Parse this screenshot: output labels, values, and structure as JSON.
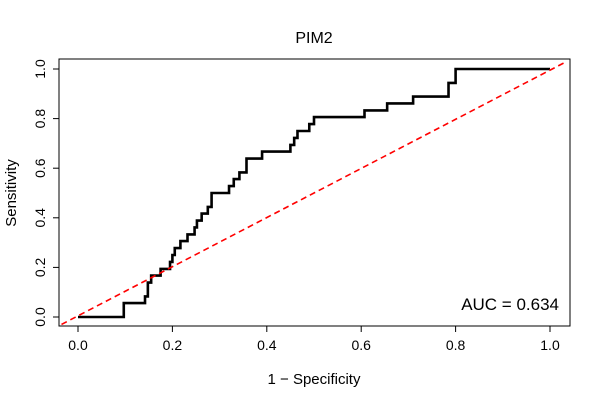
{
  "chart_data": {
    "type": "line",
    "title": "PIM2",
    "xlabel": "1 − Specificity",
    "ylabel": "Sensitivity",
    "xlim": [
      0,
      1
    ],
    "ylim": [
      0,
      1
    ],
    "xticks": [
      "0.0",
      "0.2",
      "0.4",
      "0.6",
      "0.8",
      "1.0"
    ],
    "yticks": [
      "0.0",
      "0.2",
      "0.4",
      "0.6",
      "0.8",
      "1.0"
    ],
    "annotation": "AUC = 0.634",
    "legend": "none",
    "grid": false,
    "series": [
      {
        "style": "solid",
        "color": "#000000",
        "points": [
          [
            0.0,
            0.0
          ],
          [
            0.097,
            0.0
          ],
          [
            0.097,
            0.056
          ],
          [
            0.142,
            0.056
          ],
          [
            0.142,
            0.083
          ],
          [
            0.148,
            0.083
          ],
          [
            0.148,
            0.139
          ],
          [
            0.155,
            0.139
          ],
          [
            0.155,
            0.167
          ],
          [
            0.175,
            0.167
          ],
          [
            0.175,
            0.194
          ],
          [
            0.195,
            0.194
          ],
          [
            0.195,
            0.222
          ],
          [
            0.2,
            0.222
          ],
          [
            0.2,
            0.25
          ],
          [
            0.205,
            0.25
          ],
          [
            0.205,
            0.278
          ],
          [
            0.217,
            0.278
          ],
          [
            0.217,
            0.306
          ],
          [
            0.232,
            0.306
          ],
          [
            0.232,
            0.333
          ],
          [
            0.247,
            0.333
          ],
          [
            0.247,
            0.361
          ],
          [
            0.252,
            0.361
          ],
          [
            0.252,
            0.389
          ],
          [
            0.262,
            0.389
          ],
          [
            0.262,
            0.417
          ],
          [
            0.275,
            0.417
          ],
          [
            0.275,
            0.444
          ],
          [
            0.283,
            0.444
          ],
          [
            0.283,
            0.5
          ],
          [
            0.32,
            0.5
          ],
          [
            0.32,
            0.528
          ],
          [
            0.33,
            0.528
          ],
          [
            0.33,
            0.556
          ],
          [
            0.342,
            0.556
          ],
          [
            0.342,
            0.583
          ],
          [
            0.357,
            0.583
          ],
          [
            0.357,
            0.639
          ],
          [
            0.39,
            0.639
          ],
          [
            0.39,
            0.667
          ],
          [
            0.45,
            0.667
          ],
          [
            0.45,
            0.694
          ],
          [
            0.458,
            0.694
          ],
          [
            0.458,
            0.722
          ],
          [
            0.465,
            0.722
          ],
          [
            0.465,
            0.75
          ],
          [
            0.49,
            0.75
          ],
          [
            0.49,
            0.778
          ],
          [
            0.5,
            0.778
          ],
          [
            0.5,
            0.806
          ],
          [
            0.607,
            0.806
          ],
          [
            0.607,
            0.833
          ],
          [
            0.655,
            0.833
          ],
          [
            0.655,
            0.861
          ],
          [
            0.71,
            0.861
          ],
          [
            0.71,
            0.889
          ],
          [
            0.785,
            0.889
          ],
          [
            0.785,
            0.944
          ],
          [
            0.8,
            0.944
          ],
          [
            0.8,
            1.0
          ],
          [
            1.0,
            1.0
          ]
        ]
      },
      {
        "style": "dashed",
        "color": "#ff0000",
        "points": [
          [
            -0.035,
            -0.03
          ],
          [
            1.035,
            1.03
          ]
        ]
      }
    ]
  }
}
